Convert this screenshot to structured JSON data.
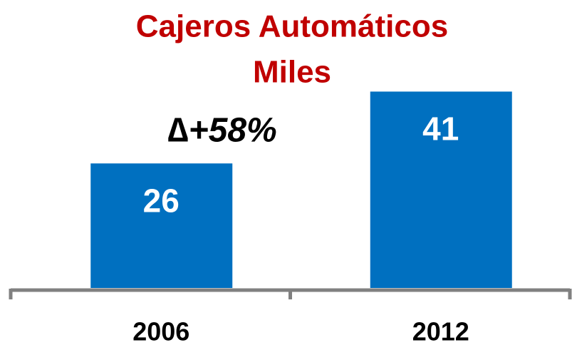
{
  "chart_data": {
    "type": "bar",
    "title": "Cajeros Automáticos",
    "subtitle": "Miles",
    "annotation": "∆+58%",
    "categories": [
      "2006",
      "2012"
    ],
    "values": [
      26,
      41
    ],
    "color": "#0070c0",
    "value_label_color": "#ffffff",
    "title_color": "#c00000",
    "axis_color": "#808080"
  }
}
